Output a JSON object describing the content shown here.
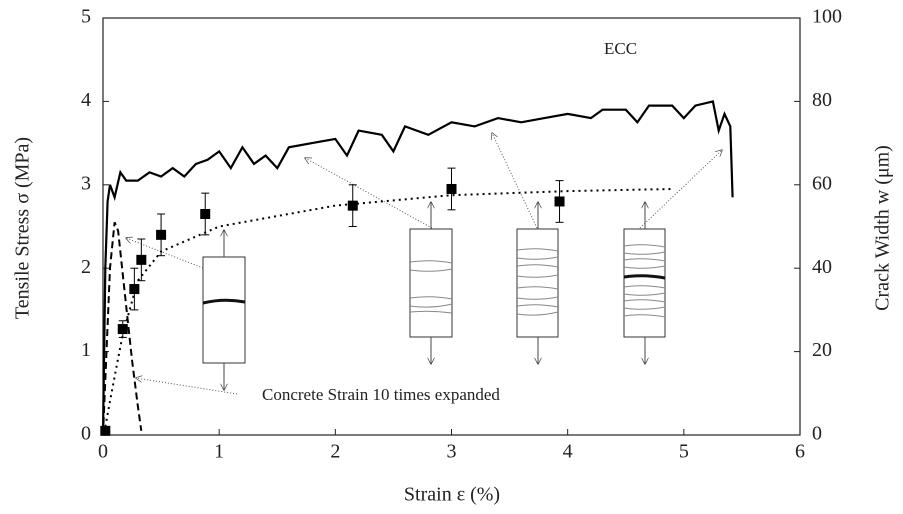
{
  "chart_data": {
    "type": "line",
    "xlabel": "Strain ε (%)",
    "ylabel": "Tensile Stress σ (MPa)",
    "y2label": "Crack Width w (μm)",
    "xlim": [
      0,
      6
    ],
    "xticks": [
      0,
      1,
      2,
      3,
      4,
      5,
      6
    ],
    "ylim": [
      0,
      5
    ],
    "yticks": [
      0,
      1,
      2,
      3,
      4,
      5
    ],
    "y2lim": [
      0,
      100
    ],
    "y2ticks": [
      0,
      20,
      40,
      60,
      80,
      100
    ],
    "annotations": [
      "ECC",
      "Concrete Strain 10 times expanded"
    ],
    "series": [
      {
        "style": "solid",
        "color": "#000000",
        "x": [
          0,
          0.02,
          0.04,
          0.06,
          0.1,
          0.15,
          0.2,
          0.3,
          0.4,
          0.5,
          0.6,
          0.7,
          0.8,
          0.9,
          1.0,
          1.1,
          1.2,
          1.3,
          1.4,
          1.5,
          1.6,
          1.8,
          2.0,
          2.1,
          2.2,
          2.4,
          2.5,
          2.6,
          2.8,
          3.0,
          3.2,
          3.4,
          3.6,
          3.8,
          4.0,
          4.2,
          4.3,
          4.5,
          4.6,
          4.7,
          4.9,
          5.0,
          5.1,
          5.25,
          5.3,
          5.35,
          5.4,
          5.42
        ],
        "y": [
          0,
          2.0,
          2.8,
          3.0,
          2.85,
          3.15,
          3.05,
          3.05,
          3.15,
          3.1,
          3.2,
          3.1,
          3.25,
          3.3,
          3.4,
          3.2,
          3.45,
          3.25,
          3.35,
          3.2,
          3.45,
          3.5,
          3.55,
          3.35,
          3.65,
          3.6,
          3.4,
          3.7,
          3.6,
          3.75,
          3.7,
          3.8,
          3.75,
          3.8,
          3.85,
          3.8,
          3.9,
          3.9,
          3.75,
          3.95,
          3.95,
          3.8,
          3.95,
          4.0,
          3.65,
          3.85,
          3.7,
          2.85
        ]
      },
      {
        "style": "dashed",
        "color": "#000000",
        "x": [
          0,
          0.03,
          0.06,
          0.1,
          0.13,
          0.18,
          0.25,
          0.3,
          0.33
        ],
        "y": [
          0,
          1.0,
          2.0,
          2.55,
          2.45,
          1.8,
          0.9,
          0.35,
          0.05
        ]
      },
      {
        "style": "dotted",
        "color": "#000000",
        "axis": "y2",
        "x": [
          0.02,
          0.1,
          0.17,
          0.3,
          0.5,
          1,
          2,
          3,
          4,
          4.9
        ],
        "y": [
          2,
          14,
          24,
          37,
          44,
          50,
          55,
          57.5,
          58.5,
          59
        ]
      },
      {
        "style": "markers",
        "color": "#000000",
        "axis": "y2",
        "x": [
          0.02,
          0.17,
          0.27,
          0.33,
          0.5,
          0.88,
          2.15,
          3.0,
          3.93
        ],
        "y": [
          1,
          25.4,
          35,
          42,
          48,
          53,
          55,
          59,
          56
        ],
        "errors": [
          0,
          2,
          5,
          5,
          5,
          5,
          5,
          5,
          5
        ]
      }
    ]
  }
}
